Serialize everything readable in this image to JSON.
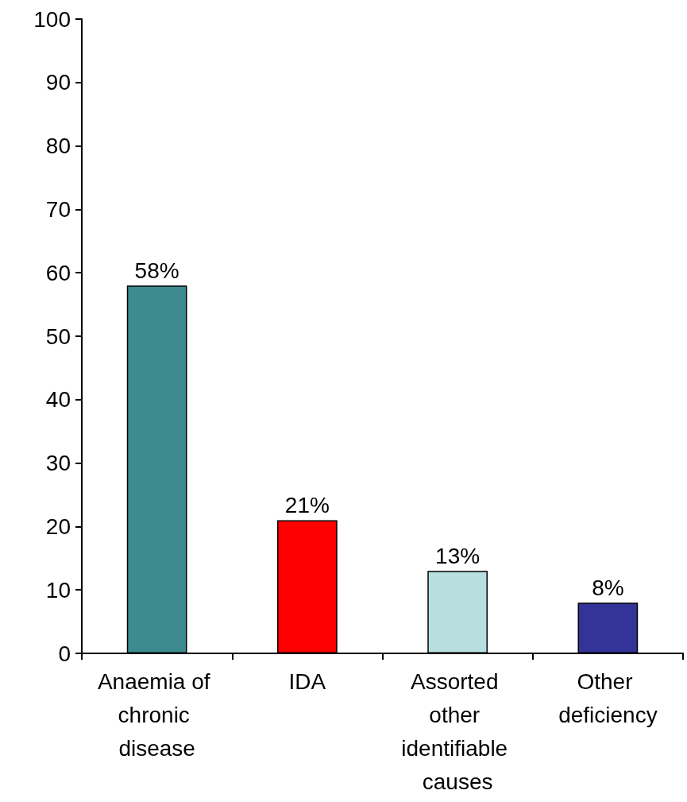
{
  "chart_data": {
    "type": "bar",
    "categories": [
      "Anaemia of chronic disease",
      "IDA",
      "Assorted other identifiable causes",
      "Other deficiency"
    ],
    "values": [
      58,
      21,
      13,
      8
    ],
    "colors": [
      "#3d8b8f",
      "#ff0000",
      "#b7dfe0",
      "#333399"
    ],
    "value_labels": [
      "58%",
      "21%",
      "13%",
      "8%"
    ],
    "ylim": [
      0,
      100
    ],
    "yticks": [
      0,
      10,
      20,
      30,
      40,
      50,
      60,
      70,
      80,
      90,
      100
    ],
    "grid": false
  }
}
